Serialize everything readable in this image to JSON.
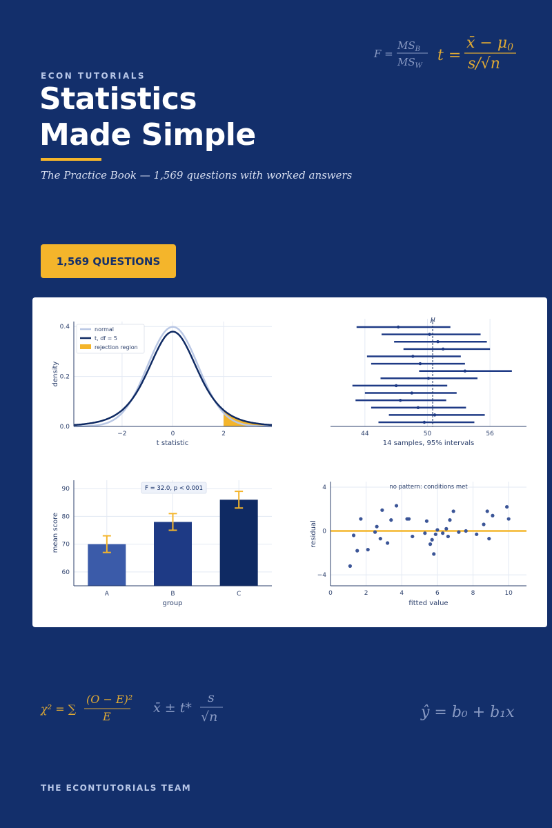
{
  "header": {
    "eyebrow": "ECON TUTORIALS",
    "title_line1": "Statistics",
    "title_line2": "Made Simple",
    "subtitle": "The Practice Book — 1,569 questions with worked answers"
  },
  "badge": {
    "label": "1,569 QUESTIONS"
  },
  "formulas": {
    "anova": {
      "lhs": "F =",
      "num": "MS",
      "num_sub": "B",
      "den": "MS",
      "den_sub": "W"
    },
    "t_stat": {
      "lhs": "t =",
      "num": "x̄ − μ",
      "num_sub": "0",
      "den": "s/√n"
    },
    "chi_square": {
      "lhs": "χ² = ∑",
      "num": "(O − E)²",
      "den": "E"
    },
    "ci": {
      "lhs": "x̄ ± t*",
      "num": "s",
      "den": "√n"
    },
    "regression": {
      "text": "ŷ = b₀ + b₁x"
    }
  },
  "footer": {
    "text": "THE ECONTUTORIALS TEAM"
  },
  "colors": {
    "background": "#132f6b",
    "accent": "#f4b52b",
    "navy": "#0f2a63"
  },
  "chart_data": [
    {
      "type": "line",
      "xlabel": "t statistic",
      "ylabel": "density",
      "xlim": [
        -3.9,
        3.9
      ],
      "ylim": [
        0,
        0.42
      ],
      "x_ticks": [
        "−2",
        "0",
        "2"
      ],
      "y_ticks": [
        "0.0",
        "0.2",
        "0.4"
      ],
      "series": [
        {
          "name": "normal",
          "distribution": "normal(0,1)"
        },
        {
          "name": "t, df = 5",
          "distribution": "t(5)"
        }
      ],
      "shaded": {
        "name": "rejection region",
        "x_from": 2
      },
      "legend": "top-left",
      "grid": true
    },
    {
      "type": "scatter",
      "title": "",
      "xlabel": "14 samples, 95% intervals",
      "x_ticks": [
        "44",
        "50",
        "56"
      ],
      "reference_line": {
        "label": "μ",
        "x": 50.5
      },
      "intervals": [
        {
          "center": 47.2,
          "low": 43.2,
          "high": 52.2
        },
        {
          "center": 50.2,
          "low": 45.6,
          "high": 55.1
        },
        {
          "center": 51.0,
          "low": 46.8,
          "high": 55.7
        },
        {
          "center": 51.5,
          "low": 47.7,
          "high": 56.0
        },
        {
          "center": 48.6,
          "low": 44.2,
          "high": 53.2
        },
        {
          "center": 49.3,
          "low": 44.6,
          "high": 53.6
        },
        {
          "center": 53.6,
          "low": 49.2,
          "high": 58.1
        },
        {
          "center": 50.1,
          "low": 45.5,
          "high": 54.8
        },
        {
          "center": 47.0,
          "low": 42.8,
          "high": 51.9
        },
        {
          "center": 48.5,
          "low": 44.0,
          "high": 52.8
        },
        {
          "center": 47.4,
          "low": 43.1,
          "high": 51.8
        },
        {
          "center": 49.1,
          "low": 44.6,
          "high": 53.7
        },
        {
          "center": 50.7,
          "low": 46.3,
          "high": 55.5
        },
        {
          "center": 49.7,
          "low": 45.3,
          "high": 54.5
        }
      ]
    },
    {
      "type": "bar",
      "xlabel": "group",
      "ylabel": "mean score",
      "annotation": "F = 32.0,  p < 0.001",
      "categories": [
        "A",
        "B",
        "C"
      ],
      "values": [
        70,
        78,
        86
      ],
      "errors": [
        3,
        3,
        3
      ],
      "ylim": [
        55,
        93
      ],
      "y_ticks": [
        "60",
        "70",
        "80",
        "90"
      ],
      "colors": [
        "#3b5ba9",
        "#1e3a85",
        "#0f2a63"
      ]
    },
    {
      "type": "scatter",
      "xlabel": "fitted value",
      "ylabel": "residual",
      "annotation": "no pattern: conditions met",
      "xlim": [
        0,
        11
      ],
      "ylim": [
        -5,
        4.5
      ],
      "x_ticks": [
        "0",
        "2",
        "4",
        "6",
        "8",
        "10"
      ],
      "y_ticks": [
        "4",
        "0",
        "−4"
      ],
      "reference_line": {
        "y": 0
      },
      "x": [
        1.1,
        1.3,
        1.5,
        1.7,
        2.1,
        2.5,
        2.6,
        2.8,
        2.9,
        3.2,
        3.4,
        3.7,
        4.3,
        4.4,
        4.6,
        5.3,
        5.4,
        5.6,
        5.7,
        5.8,
        5.9,
        6.0,
        6.3,
        6.5,
        6.6,
        6.7,
        6.9,
        7.2,
        7.6,
        8.2,
        8.6,
        8.8,
        8.9,
        9.1,
        9.9,
        10.0
      ],
      "y": [
        -3.2,
        -0.4,
        -1.8,
        1.1,
        -1.7,
        -0.1,
        0.4,
        -0.7,
        1.9,
        -1.1,
        1.0,
        2.3,
        1.1,
        1.1,
        -0.5,
        -0.2,
        0.9,
        -1.2,
        -0.8,
        -2.1,
        -0.3,
        0.1,
        -0.2,
        0.2,
        -0.5,
        1.0,
        1.8,
        -0.1,
        0.0,
        -0.3,
        0.6,
        1.8,
        -0.7,
        1.4,
        2.2,
        1.1
      ]
    }
  ]
}
